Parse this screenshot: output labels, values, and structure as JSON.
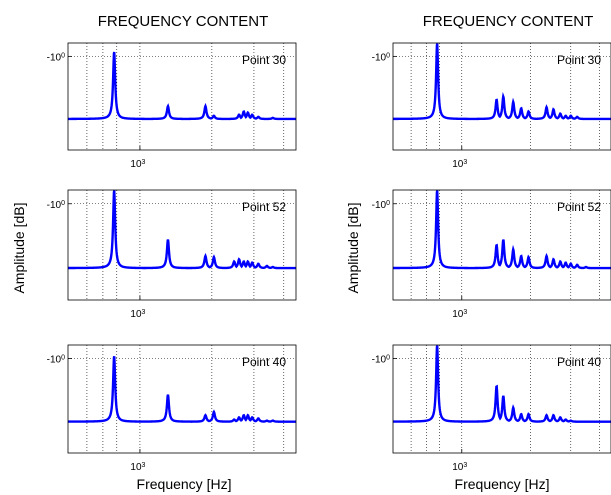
{
  "figure": {
    "columns": [
      {
        "title": "FREQUENCY  CONTENT",
        "ylabel": "Amplitude [dB]",
        "xlabel": "Frequency [Hz]"
      },
      {
        "title": "FREQUENCY  CONTENT",
        "ylabel": "Amplitude [dB]",
        "xlabel": "Frequency [Hz]"
      }
    ],
    "ytick_base": "-10",
    "ytick_exp": "0",
    "xtick_base": "10",
    "xtick_exp": "3"
  },
  "chart_data": [
    {
      "type": "line",
      "panel": "left-top",
      "label": "Point 30",
      "x_scale": "log",
      "xlim": [
        500,
        4500
      ],
      "ylim": [
        0,
        1
      ],
      "color": "#0000ff",
      "background": 0.29,
      "peaks": [
        [
          780,
          0.92
        ],
        [
          1310,
          0.41
        ],
        [
          1880,
          0.41
        ],
        [
          2040,
          0.32
        ],
        [
          2480,
          0.29
        ],
        [
          2600,
          0.33
        ],
        [
          2720,
          0.36
        ],
        [
          2830,
          0.35
        ],
        [
          2950,
          0.33
        ],
        [
          3130,
          0.31
        ],
        [
          3400,
          0.29
        ],
        [
          3600,
          0.3
        ],
        [
          3800,
          0.29
        ],
        [
          4000,
          0.29
        ],
        [
          4200,
          0.28
        ]
      ]
    },
    {
      "type": "line",
      "panel": "left-middle",
      "label": "Point 52",
      "x_scale": "log",
      "xlim": [
        500,
        4500
      ],
      "ylim": [
        0,
        1
      ],
      "color": "#0000ff",
      "background": 0.29,
      "peaks": [
        [
          780,
          1.0
        ],
        [
          1310,
          0.55
        ],
        [
          1880,
          0.4
        ],
        [
          2040,
          0.39
        ],
        [
          2480,
          0.35
        ],
        [
          2600,
          0.37
        ],
        [
          2720,
          0.35
        ],
        [
          2830,
          0.35
        ],
        [
          2950,
          0.34
        ],
        [
          3130,
          0.33
        ],
        [
          3400,
          0.31
        ],
        [
          3600,
          0.3
        ],
        [
          3800,
          0.29
        ],
        [
          4000,
          0.28
        ],
        [
          4200,
          0.27
        ]
      ]
    },
    {
      "type": "line",
      "panel": "left-bottom",
      "label": "Point 40",
      "x_scale": "log",
      "xlim": [
        500,
        4500
      ],
      "ylim": [
        0,
        1
      ],
      "color": "#0000ff",
      "background": 0.29,
      "peaks": [
        [
          780,
          0.9
        ],
        [
          1310,
          0.54
        ],
        [
          1880,
          0.35
        ],
        [
          2040,
          0.38
        ],
        [
          2480,
          0.31
        ],
        [
          2600,
          0.33
        ],
        [
          2720,
          0.35
        ],
        [
          2830,
          0.35
        ],
        [
          2950,
          0.33
        ],
        [
          3130,
          0.32
        ],
        [
          3400,
          0.3
        ],
        [
          3600,
          0.3
        ],
        [
          3800,
          0.29
        ],
        [
          4000,
          0.29
        ],
        [
          4200,
          0.28
        ]
      ]
    },
    {
      "type": "line",
      "panel": "right-top",
      "label": "Point 30",
      "x_scale": "log",
      "xlim": [
        500,
        4500
      ],
      "ylim": [
        0,
        1
      ],
      "color": "#0000ff",
      "background": 0.29,
      "peaks": [
        [
          780,
          1.0
        ],
        [
          1420,
          0.47
        ],
        [
          1520,
          0.5
        ],
        [
          1680,
          0.45
        ],
        [
          1820,
          0.39
        ],
        [
          1960,
          0.36
        ],
        [
          2350,
          0.4
        ],
        [
          2520,
          0.38
        ],
        [
          2700,
          0.34
        ],
        [
          2850,
          0.32
        ],
        [
          3000,
          0.32
        ],
        [
          3200,
          0.31
        ],
        [
          3500,
          0.29
        ],
        [
          3800,
          0.28
        ],
        [
          4100,
          0.27
        ]
      ]
    },
    {
      "type": "line",
      "panel": "right-middle",
      "label": "Point 52",
      "x_scale": "log",
      "xlim": [
        500,
        4500
      ],
      "ylim": [
        0,
        1
      ],
      "color": "#0000ff",
      "background": 0.29,
      "peaks": [
        [
          780,
          1.0
        ],
        [
          1420,
          0.5
        ],
        [
          1520,
          0.55
        ],
        [
          1680,
          0.46
        ],
        [
          1820,
          0.4
        ],
        [
          1960,
          0.39
        ],
        [
          2350,
          0.4
        ],
        [
          2520,
          0.37
        ],
        [
          2700,
          0.35
        ],
        [
          2850,
          0.34
        ],
        [
          3000,
          0.33
        ],
        [
          3200,
          0.32
        ],
        [
          3500,
          0.3
        ],
        [
          3800,
          0.29
        ],
        [
          4100,
          0.27
        ]
      ]
    },
    {
      "type": "line",
      "panel": "right-bottom",
      "label": "Point 40",
      "x_scale": "log",
      "xlim": [
        500,
        4500
      ],
      "ylim": [
        0,
        1
      ],
      "color": "#0000ff",
      "background": 0.29,
      "peaks": [
        [
          780,
          1.0
        ],
        [
          1420,
          0.62
        ],
        [
          1520,
          0.53
        ],
        [
          1680,
          0.42
        ],
        [
          1820,
          0.36
        ],
        [
          1960,
          0.36
        ],
        [
          2350,
          0.35
        ],
        [
          2520,
          0.35
        ],
        [
          2700,
          0.33
        ],
        [
          2850,
          0.31
        ],
        [
          3000,
          0.3
        ],
        [
          3200,
          0.29
        ],
        [
          3500,
          0.28
        ],
        [
          3800,
          0.27
        ],
        [
          4100,
          0.26
        ]
      ]
    }
  ]
}
